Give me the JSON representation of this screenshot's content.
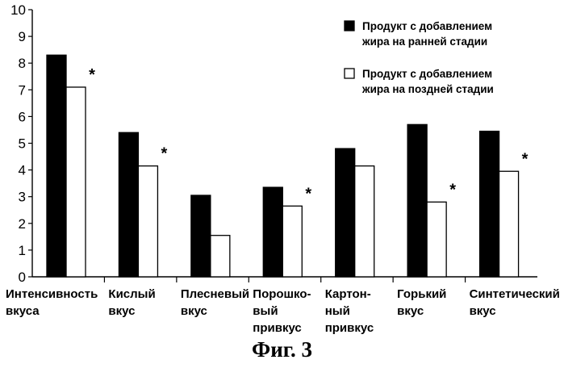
{
  "figure_caption": "Фиг. 3",
  "chart_data": {
    "type": "bar",
    "categories": [
      [
        "Интенсивность",
        "вкуса"
      ],
      [
        "Кислый",
        "вкус"
      ],
      [
        "Плесневый",
        "вкус"
      ],
      [
        "Порошко-",
        "вый",
        "привкус"
      ],
      [
        "Картон-",
        "ный",
        "привкус"
      ],
      [
        "Горький",
        "вкус"
      ],
      [
        "Синтетический",
        "вкус"
      ]
    ],
    "series": [
      {
        "name": [
          "Продукт с добавлением",
          "жира на ранней стадии"
        ],
        "color": "#000000",
        "values": [
          8.3,
          5.4,
          3.05,
          3.35,
          4.8,
          5.7,
          5.45
        ]
      },
      {
        "name": [
          "Продукт с добавлением",
          "жира на поздней стадии"
        ],
        "color": "#ffffff",
        "values": [
          7.1,
          4.15,
          1.55,
          2.65,
          4.15,
          2.8,
          3.95
        ]
      }
    ],
    "significance_marks": [
      "*",
      "*",
      "",
      "*",
      "",
      "*",
      "*"
    ],
    "yticks": [
      "0",
      "1",
      "2",
      "3",
      "4",
      "5",
      "6",
      "7",
      "8",
      "9",
      "10"
    ],
    "ylim": [
      0,
      10
    ],
    "legend_position": "top-right",
    "grid": false
  }
}
